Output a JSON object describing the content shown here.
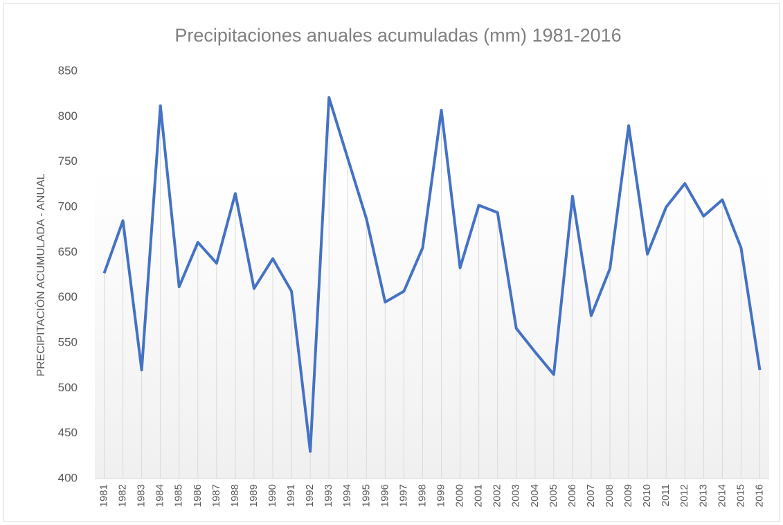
{
  "chart_data": {
    "type": "line",
    "title": "Precipitaciones anuales acumuladas (mm) 1981-2016",
    "y_label": "PRECIPITACIÓN ACUMULADA - ANUAL",
    "categories": [
      "1981",
      "1982",
      "1983",
      "1984",
      "1985",
      "1986",
      "1987",
      "1988",
      "1989",
      "1990",
      "1991",
      "1992",
      "1993",
      "1994",
      "1995",
      "1996",
      "1997",
      "1998",
      "1999",
      "2000",
      "2001",
      "2002",
      "2003",
      "2004",
      "2005",
      "2006",
      "2007",
      "2008",
      "2009",
      "2010",
      "2011",
      "2012",
      "2013",
      "2014",
      "2015",
      "2016"
    ],
    "series": [
      {
        "name": "Precipitación",
        "color": "#4472c4",
        "values": [
          627,
          685,
          520,
          812,
          612,
          661,
          638,
          715,
          610,
          643,
          607,
          430,
          821,
          754,
          687,
          595,
          607,
          655,
          807,
          633,
          702,
          694,
          566,
          540,
          515,
          712,
          580,
          632,
          790,
          648,
          700,
          726,
          690,
          708,
          655,
          520
        ]
      }
    ],
    "ylim": [
      400,
      850
    ],
    "yticks": [
      400,
      450,
      500,
      550,
      600,
      650,
      700,
      750,
      800,
      850
    ],
    "drop_lines": true
  }
}
